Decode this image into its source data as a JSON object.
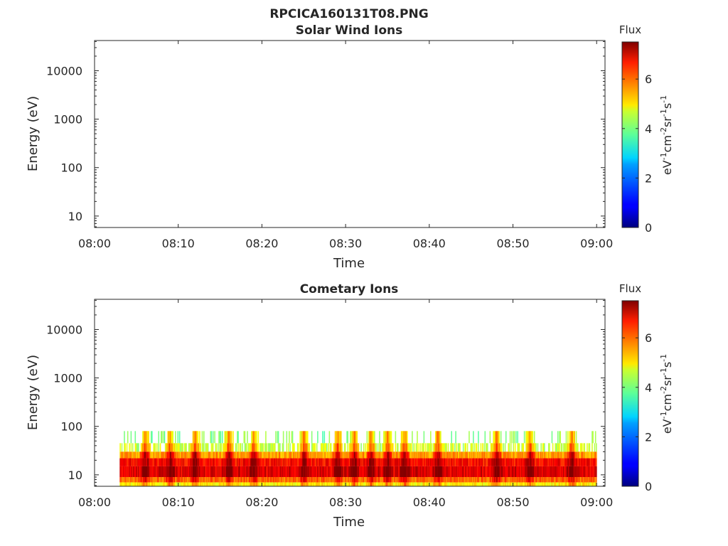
{
  "figure_title": "RPCICA160131T08.PNG",
  "chart_data": [
    {
      "type": "heatmap",
      "title": "Solar Wind Ions",
      "xlabel": "Time",
      "ylabel": "Energy (eV)",
      "x_range": [
        "08:00",
        "09:01"
      ],
      "x_ticks": [
        "08:00",
        "08:10",
        "08:20",
        "08:30",
        "08:40",
        "08:50",
        "09:00"
      ],
      "y_scale": "log",
      "y_range": [
        5.8,
        42000
      ],
      "y_ticks": [
        10,
        100,
        1000,
        10000
      ],
      "y_tick_labels": [
        "10",
        "100",
        "1000",
        "10000"
      ],
      "grid": false,
      "colorbar": {
        "title": "Flux",
        "label": "eV-1cm-2sr-1s-1",
        "range": [
          0,
          7.5
        ],
        "ticks": [
          0,
          2,
          4,
          6
        ],
        "colormap": "jet"
      },
      "data": []
    },
    {
      "type": "heatmap",
      "title": "Cometary Ions",
      "xlabel": "Time",
      "ylabel": "Energy (eV)",
      "x_range": [
        "08:00",
        "09:01"
      ],
      "x_ticks": [
        "08:00",
        "08:10",
        "08:20",
        "08:30",
        "08:40",
        "08:50",
        "09:00"
      ],
      "y_scale": "log",
      "y_range": [
        5.8,
        42000
      ],
      "y_ticks": [
        10,
        100,
        1000,
        10000
      ],
      "y_tick_labels": [
        "10",
        "100",
        "1000",
        "10000"
      ],
      "grid": false,
      "colorbar": {
        "title": "Flux",
        "label": "eV-1cm-2sr-1s-1",
        "range": [
          0,
          7.5
        ],
        "ticks": [
          0,
          2,
          4,
          6
        ],
        "colormap": "jet"
      },
      "data_time_range": [
        "08:03",
        "09:00"
      ],
      "energy_bands": [
        {
          "energy_range_eV": [
            5.8,
            7
          ],
          "flux": 4.8
        },
        {
          "energy_range_eV": [
            7,
            9
          ],
          "flux": 5.8
        },
        {
          "energy_range_eV": [
            9,
            15
          ],
          "flux": 6.8
        },
        {
          "energy_range_eV": [
            15,
            22
          ],
          "flux": 6.5
        },
        {
          "energy_range_eV": [
            22,
            30
          ],
          "flux": 5.4
        },
        {
          "energy_range_eV": [
            30,
            45
          ],
          "flux": 4.3
        },
        {
          "energy_range_eV": [
            45,
            80
          ],
          "flux": 3.8
        }
      ],
      "high_flux_times": [
        "08:06",
        "08:09",
        "08:12",
        "08:16",
        "08:19",
        "08:25",
        "08:29",
        "08:31",
        "08:33",
        "08:35",
        "08:37",
        "08:41",
        "08:48",
        "08:52",
        "08:57"
      ]
    }
  ]
}
